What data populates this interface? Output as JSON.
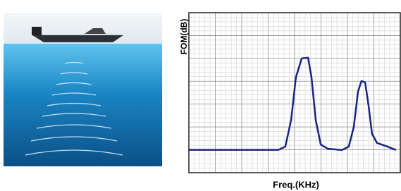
{
  "chart_data": {
    "type": "line",
    "x_label": "Freq.(KHz)",
    "y_label": "FOM(dB)",
    "x": [
      0,
      3.39,
      3.65,
      3.87,
      4.05,
      4.27,
      4.51,
      4.64,
      4.8,
      4.99,
      5.25,
      5.79,
      6.05,
      6.24,
      6.4,
      6.53,
      6.67,
      6.8,
      6.93,
      7.12,
      7.52,
      7.84
    ],
    "series": [
      {
        "color": "#1a237e",
        "values": [
          1.0,
          1.0,
          1.14,
          2.31,
          4.17,
          5.0,
          5.03,
          4.17,
          2.31,
          1.23,
          1.05,
          0.99,
          1.14,
          2.0,
          3.55,
          4.01,
          3.95,
          2.93,
          1.7,
          1.3,
          1.14,
          0.99
        ]
      }
    ],
    "xlim": [
      0,
      8
    ],
    "ylim": [
      0,
      7
    ],
    "grid": true
  }
}
